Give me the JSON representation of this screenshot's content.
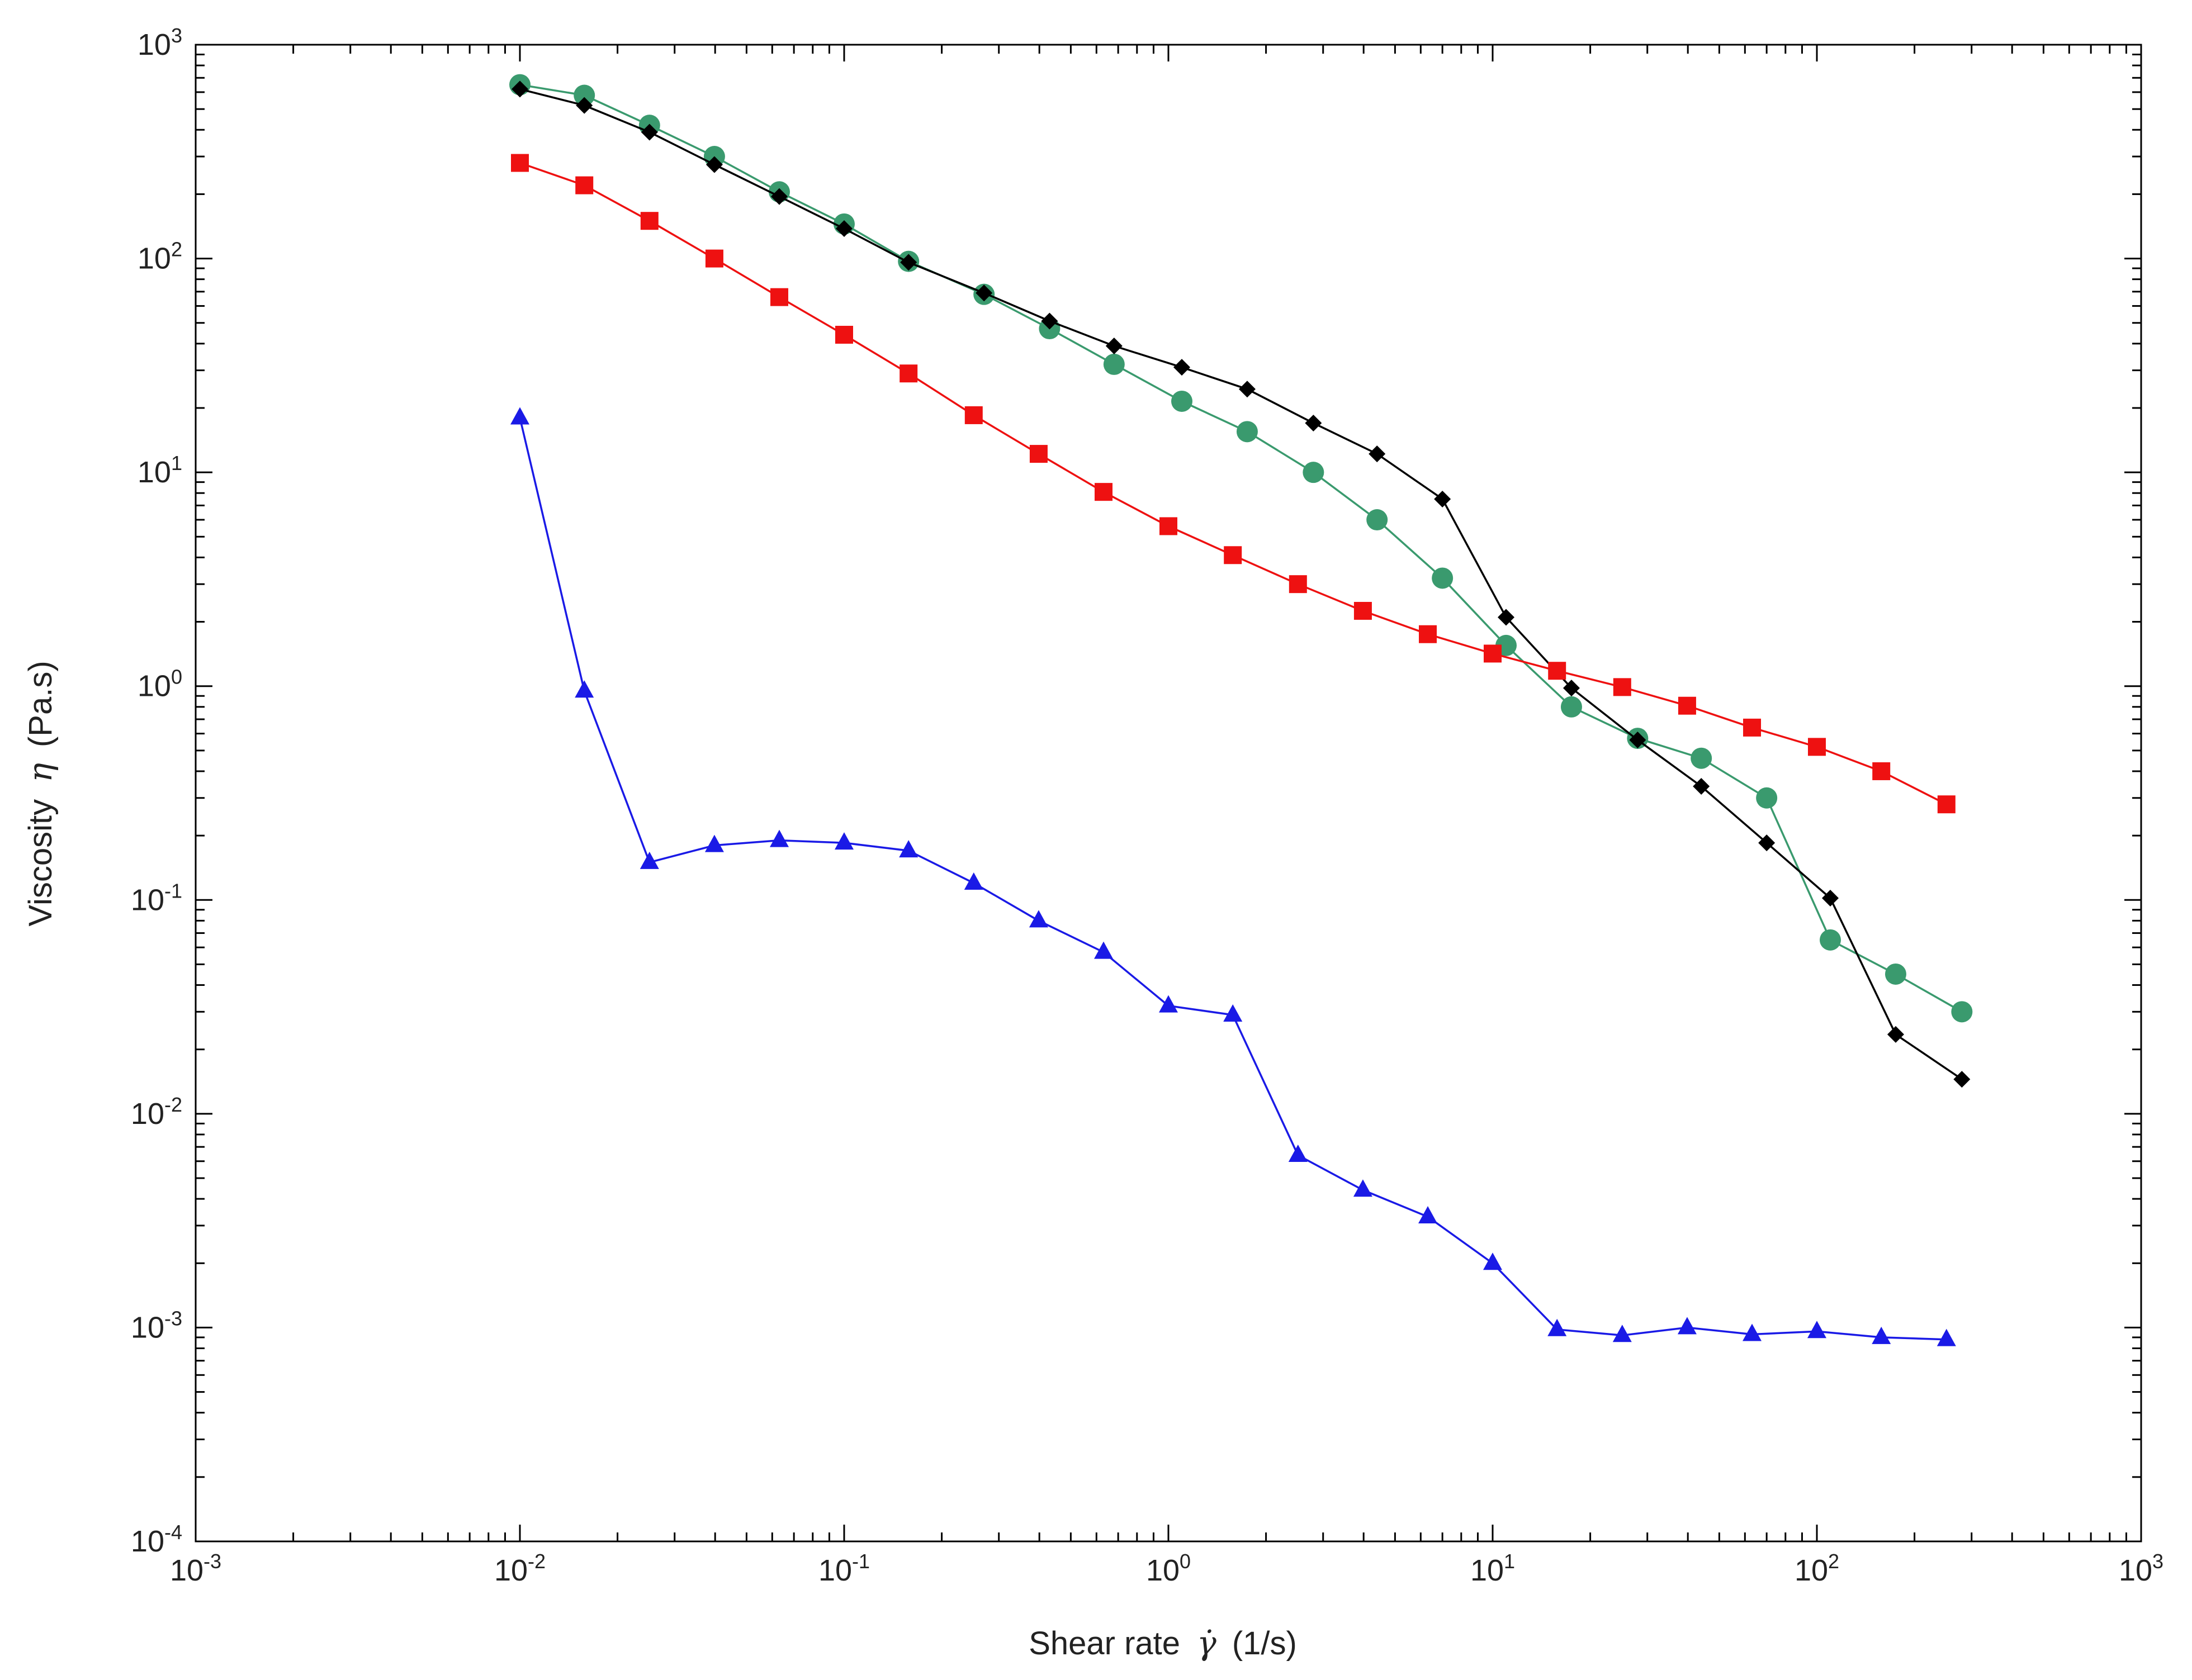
{
  "chart_data": {
    "type": "line",
    "xscale": "log",
    "yscale": "log",
    "xlim": [
      0.001,
      1000
    ],
    "ylim": [
      0.0001,
      1000
    ],
    "x_tick_base": "10",
    "x_ticks": [
      {
        "exp": "-3",
        "value": 0.001
      },
      {
        "exp": "-2",
        "value": 0.01
      },
      {
        "exp": "-1",
        "value": 0.1
      },
      {
        "exp": "0",
        "value": 1
      },
      {
        "exp": "1",
        "value": 10
      },
      {
        "exp": "2",
        "value": 100
      },
      {
        "exp": "3",
        "value": 1000
      }
    ],
    "y_tick_base": "10",
    "y_ticks": [
      {
        "exp": "-4",
        "value": 0.0001
      },
      {
        "exp": "-3",
        "value": 0.001
      },
      {
        "exp": "-2",
        "value": 0.01
      },
      {
        "exp": "-1",
        "value": 0.1
      },
      {
        "exp": "0",
        "value": 1
      },
      {
        "exp": "1",
        "value": 10
      },
      {
        "exp": "2",
        "value": 100
      },
      {
        "exp": "3",
        "value": 1000
      }
    ],
    "xlabel": {
      "text": "Shear rate ",
      "symbol": "γ̇",
      "unit": "(1/s)"
    },
    "ylabel": {
      "text": "Viscosity ",
      "symbol": "η",
      "unit": "(Pa.s)"
    },
    "series": [
      {
        "name": "green-circles",
        "color": "#3a9a6e",
        "marker": "circle",
        "x": [
          0.01,
          0.0158,
          0.0251,
          0.0398,
          0.0631,
          0.1,
          0.158,
          0.27,
          0.43,
          0.68,
          1.1,
          1.75,
          2.8,
          4.4,
          7.0,
          11.0,
          17.5,
          28,
          44,
          70,
          110,
          175,
          280
        ],
        "y": [
          650,
          580,
          420,
          300,
          205,
          145,
          97,
          68,
          47,
          32,
          21.5,
          15.5,
          10,
          6,
          3.2,
          1.55,
          0.8,
          0.57,
          0.46,
          0.3,
          0.065,
          0.045,
          0.03
        ]
      },
      {
        "name": "black-diamonds",
        "color": "#000000",
        "marker": "diamond",
        "x": [
          0.01,
          0.0158,
          0.0251,
          0.0398,
          0.0631,
          0.1,
          0.158,
          0.27,
          0.43,
          0.68,
          1.1,
          1.75,
          2.8,
          4.4,
          7.0,
          11.0,
          17.5,
          28,
          44,
          70,
          110,
          175,
          280
        ],
        "y": [
          620,
          520,
          390,
          275,
          195,
          138,
          96,
          69,
          51,
          39,
          31,
          24.5,
          17,
          12.2,
          7.5,
          2.1,
          0.98,
          0.56,
          0.34,
          0.185,
          0.102,
          0.0235,
          0.0145
        ]
      },
      {
        "name": "red-squares",
        "color": "#ee1111",
        "marker": "square",
        "x": [
          0.01,
          0.0158,
          0.0251,
          0.0398,
          0.0631,
          0.1,
          0.158,
          0.251,
          0.398,
          0.631,
          1.0,
          1.58,
          2.51,
          3.98,
          6.31,
          10,
          15.8,
          25.1,
          39.8,
          63.1,
          100,
          158,
          251
        ],
        "y": [
          280,
          220,
          150,
          100,
          66,
          44,
          29,
          18.5,
          12.2,
          8.1,
          5.6,
          4.1,
          3.0,
          2.25,
          1.75,
          1.42,
          1.18,
          0.99,
          0.81,
          0.64,
          0.52,
          0.4,
          0.28
        ]
      },
      {
        "name": "blue-triangles",
        "color": "#1a1ae6",
        "marker": "triangle",
        "x": [
          0.01,
          0.0158,
          0.0251,
          0.0398,
          0.0631,
          0.1,
          0.158,
          0.251,
          0.398,
          0.631,
          1.0,
          1.58,
          2.51,
          3.98,
          6.31,
          10,
          15.8,
          25.1,
          39.8,
          63.1,
          100,
          158,
          251
        ],
        "y": [
          18,
          0.95,
          0.15,
          0.18,
          0.19,
          0.185,
          0.17,
          0.12,
          0.08,
          0.057,
          0.032,
          0.029,
          0.0064,
          0.0044,
          0.0033,
          0.002,
          0.00098,
          0.00092,
          0.001,
          0.00093,
          0.00096,
          0.0009,
          0.00088
        ]
      }
    ]
  }
}
